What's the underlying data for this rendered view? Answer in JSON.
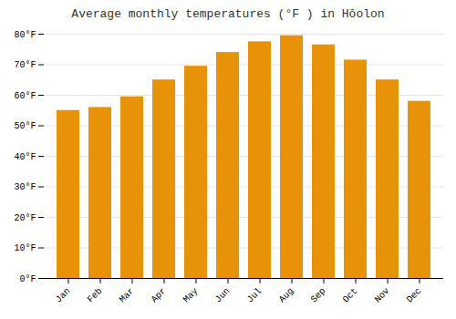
{
  "chart_data": {
    "type": "bar",
    "title": "Average monthly temperatures (°F ) in Hōolon",
    "categories": [
      "Jan",
      "Feb",
      "Mar",
      "Apr",
      "May",
      "Jun",
      "Jul",
      "Aug",
      "Sep",
      "Oct",
      "Nov",
      "Dec"
    ],
    "values": [
      55,
      56,
      59.5,
      65,
      69.5,
      74,
      77.5,
      79.5,
      76.5,
      71.5,
      65,
      58
    ],
    "color": "#E8920A",
    "ylim": [
      0,
      80
    ],
    "yticks": [
      {
        "value": 0,
        "label": "0°F"
      },
      {
        "value": 10,
        "label": "10°F"
      },
      {
        "value": 20,
        "label": "20°F"
      },
      {
        "value": 30,
        "label": "30°F"
      },
      {
        "value": 40,
        "label": "40°F"
      },
      {
        "value": 50,
        "label": "50°F"
      },
      {
        "value": 60,
        "label": "60°F"
      },
      {
        "value": 70,
        "label": "70°F"
      },
      {
        "value": 80,
        "label": "80°F"
      }
    ],
    "grid": true
  }
}
